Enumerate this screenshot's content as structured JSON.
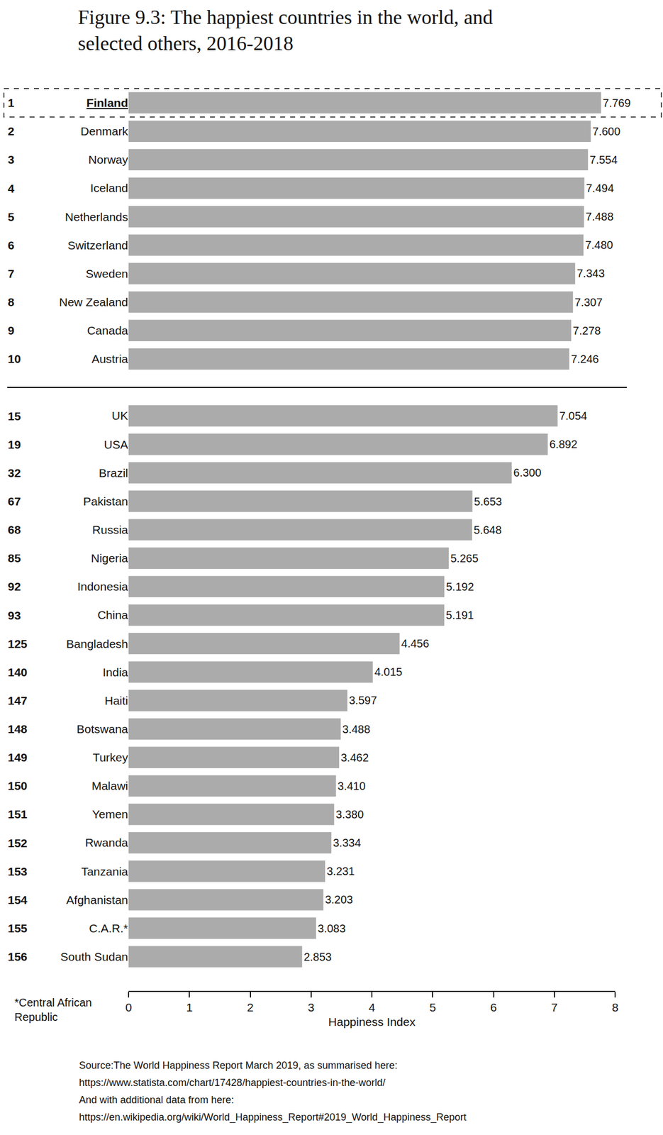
{
  "chart_data": {
    "type": "bar",
    "orientation": "horizontal",
    "title": "Figure 9.3: The happiest countries in the world, and\nselected others, 2016-2018",
    "xlabel": "Happiness Index",
    "categories": [
      "Finland",
      "Denmark",
      "Norway",
      "Iceland",
      "Netherlands",
      "Switzerland",
      "Sweden",
      "New Zealand",
      "Canada",
      "Austria",
      "UK",
      "USA",
      "Brazil",
      "Pakistan",
      "Russia",
      "Nigeria",
      "Indonesia",
      "China",
      "Bangladesh",
      "India",
      "Haiti",
      "Botswana",
      "Turkey",
      "Malawi",
      "Yemen",
      "Rwanda",
      "Tanzania",
      "Afghanistan",
      "C.A.R.*",
      "South Sudan"
    ],
    "ranks": [
      1,
      2,
      3,
      4,
      5,
      6,
      7,
      8,
      9,
      10,
      15,
      19,
      32,
      67,
      68,
      85,
      92,
      93,
      125,
      140,
      147,
      148,
      149,
      150,
      151,
      152,
      153,
      154,
      155,
      156
    ],
    "values": [
      7.769,
      7.6,
      7.554,
      7.494,
      7.488,
      7.48,
      7.343,
      7.307,
      7.278,
      7.246,
      7.054,
      6.892,
      6.3,
      5.653,
      5.648,
      5.265,
      5.192,
      5.191,
      4.456,
      4.015,
      3.597,
      3.488,
      3.462,
      3.41,
      3.38,
      3.334,
      3.231,
      3.203,
      3.083,
      2.853
    ],
    "value_labels": [
      "7.769",
      "7.600",
      "7.554",
      "7.494",
      "7.488",
      "7.480",
      "7.343",
      "7.307",
      "7.278",
      "7.246",
      "7.054",
      "6.892",
      "6.300",
      "5.653",
      "5.648",
      "5.265",
      "5.192",
      "5.191",
      "4.456",
      "4.015",
      "3.597",
      "3.488",
      "3.462",
      "3.410",
      "3.380",
      "3.334",
      "3.231",
      "3.203",
      "3.083",
      "2.853"
    ],
    "color": "#ababab",
    "data_labels": true,
    "grid": false,
    "xlim": [
      0,
      8
    ],
    "xticks": [
      0,
      1,
      2,
      3,
      4,
      5,
      6,
      7,
      8
    ],
    "footnote": "*Central African\nRepublic",
    "source": "Source:The World Happiness Report March 2019, as summarised here:\nhttps://www.statista.com/chart/17428/happiest-countries-in-the-world/\nAnd with additional data from here:\nhttps://en.wikipedia.org/wiki/World_Happiness_Report#2019_World_Happiness_Report"
  }
}
